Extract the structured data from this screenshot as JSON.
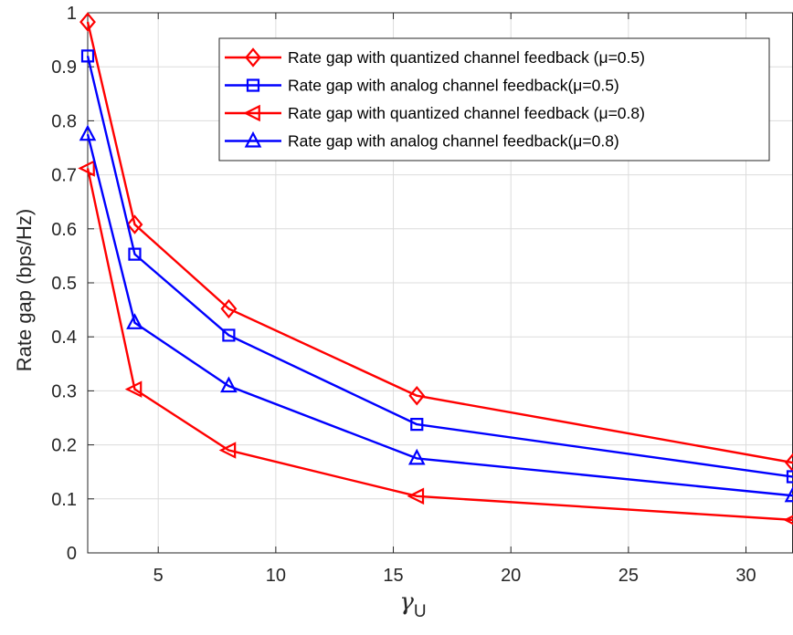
{
  "chart_data": {
    "type": "line",
    "title": "",
    "xlabel": "γ",
    "xlabel_subscript": "U",
    "ylabel": "Rate gap (bps/Hz)",
    "xlim": [
      2,
      32
    ],
    "ylim": [
      0,
      1
    ],
    "xticks": [
      5,
      10,
      15,
      20,
      25,
      30
    ],
    "yticks": [
      0,
      0.1,
      0.2,
      0.3,
      0.4,
      0.5,
      0.6,
      0.7,
      0.8,
      0.9,
      1
    ],
    "ytick_labels": [
      "0",
      "0.1",
      "0.2",
      "0.3",
      "0.4",
      "0.5",
      "0.6",
      "0.7",
      "0.8",
      "0.9",
      "1"
    ],
    "grid": true,
    "legend_position": "top-right",
    "x": [
      2,
      4,
      8,
      16,
      32
    ],
    "series": [
      {
        "name": "Rate gap with quantized channel feedback (μ=0.5)",
        "color": "#ff0000",
        "marker": "diamond",
        "values": [
          0.983,
          0.608,
          0.452,
          0.291,
          0.167
        ]
      },
      {
        "name": "Rate gap with analog channel feedback(μ=0.5)",
        "color": "#0000ff",
        "marker": "square",
        "values": [
          0.92,
          0.553,
          0.403,
          0.238,
          0.141
        ]
      },
      {
        "name": "Rate gap with quantized channel feedback (μ=0.8)",
        "color": "#ff0000",
        "marker": "triangle-left",
        "values": [
          0.712,
          0.303,
          0.19,
          0.105,
          0.061
        ]
      },
      {
        "name": "Rate gap with analog channel feedback(μ=0.8)",
        "color": "#0000ff",
        "marker": "triangle-up",
        "values": [
          0.775,
          0.426,
          0.309,
          0.175,
          0.106
        ]
      }
    ]
  }
}
